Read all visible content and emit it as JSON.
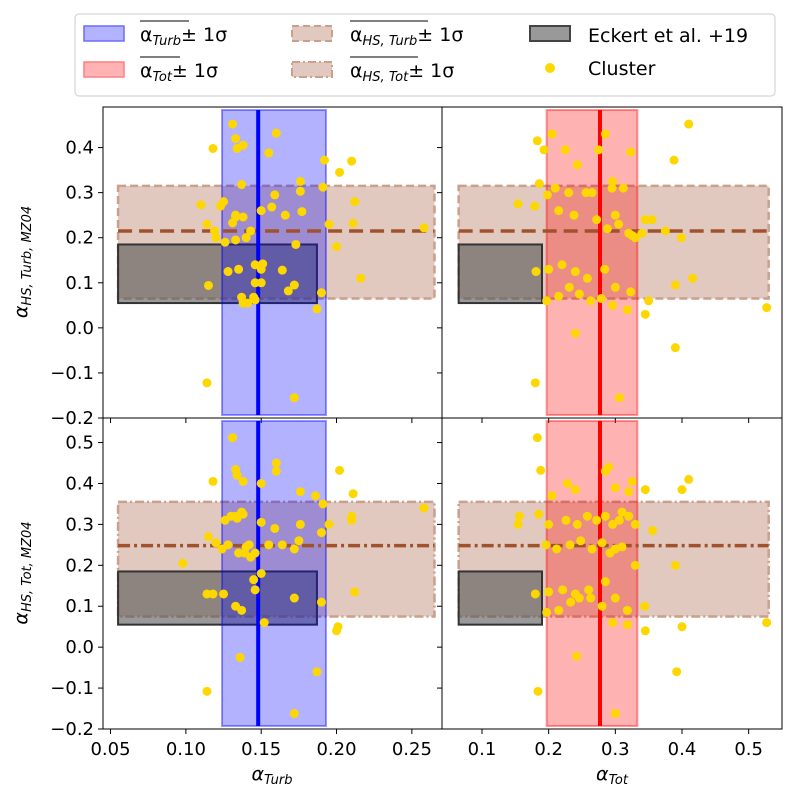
{
  "chart_data": {
    "type": "scatter",
    "figure": "2x2 grid of scatter panels with shared axes",
    "colors": {
      "turb": "#0000ff",
      "turb_fill": "#b3b3ff",
      "tot": "#ff0000",
      "tot_fill": "#ffb3b3",
      "hs": "#a0522d",
      "hs_fill": "#e2c9bf",
      "eckert": "#555555",
      "cluster": "#ffd700"
    },
    "legend": {
      "placement": "top",
      "entries": [
        {
          "key": "turb_band",
          "label": "α_Turb ± 1σ",
          "pm": "± 1σ"
        },
        {
          "key": "tot_band",
          "label": "α_Tot ± 1σ",
          "pm": "± 1σ"
        },
        {
          "key": "hs_turb_band",
          "label": "α_HS,Turb ± 1σ",
          "pm": "± 1σ"
        },
        {
          "key": "hs_tot_band",
          "label": "α_HS,Tot ± 1σ",
          "pm": "± 1σ"
        },
        {
          "key": "eckert",
          "label": "Eckert et al. +19"
        },
        {
          "key": "cluster",
          "label": "Cluster"
        }
      ]
    },
    "x_axes": [
      {
        "label": "α_Turb",
        "range": [
          0.045,
          0.27
        ],
        "ticks": [
          0.05,
          0.1,
          0.15,
          0.2,
          0.25
        ],
        "tick_labels": [
          "0.05",
          "0.10",
          "0.15",
          "0.20",
          "0.25"
        ]
      },
      {
        "label": "α_Tot",
        "range": [
          0.04,
          0.55
        ],
        "ticks": [
          0.1,
          0.2,
          0.3,
          0.4,
          0.5
        ],
        "tick_labels": [
          "0.1",
          "0.2",
          "0.3",
          "0.4",
          "0.5"
        ]
      }
    ],
    "y_axes": [
      {
        "label": "α_HS,Turb,MZ04",
        "range": [
          -0.2,
          0.49
        ],
        "ticks": [
          -0.2,
          -0.1,
          0.0,
          0.1,
          0.2,
          0.3,
          0.4
        ],
        "tick_labels": [
          "−0.2",
          "−0.1",
          "0.0",
          "0.1",
          "0.2",
          "0.3",
          "0.4"
        ]
      },
      {
        "label": "α_HS,Tot,MZ04",
        "range": [
          -0.2,
          0.56
        ],
        "ticks": [
          -0.2,
          -0.1,
          0.0,
          0.1,
          0.2,
          0.3,
          0.4,
          0.5
        ],
        "tick_labels": [
          "−0.2",
          "−0.1",
          "0.0",
          "0.1",
          "0.2",
          "0.3",
          "0.4",
          "0.5"
        ]
      }
    ],
    "panels": [
      {
        "id": "top-left",
        "row": 0,
        "col": 0,
        "vband": {
          "mean": 0.148,
          "low": 0.124,
          "high": 0.193,
          "kind": "turb"
        },
        "hband": {
          "mean": 0.215,
          "low": 0.065,
          "high": 0.315,
          "x_from": 0.055,
          "x_to": 0.265,
          "kind": "hs_turb"
        },
        "eckert": {
          "x0": 0.055,
          "x1": 0.187,
          "y0": 0.055,
          "y1": 0.185
        },
        "cluster": {
          "x": [
            0.131,
            0.118,
            0.133,
            0.134,
            0.138,
            0.16,
            0.155,
            0.192,
            0.21,
            0.176,
            0.191,
            0.202,
            0.137,
            0.159,
            0.176,
            0.212,
            0.11,
            0.125,
            0.123,
            0.133,
            0.133,
            0.131,
            0.138,
            0.15,
            0.166,
            0.157,
            0.177,
            0.195,
            0.211,
            0.143,
            0.114,
            0.119,
            0.12,
            0.126,
            0.133,
            0.14,
            0.151,
            0.146,
            0.15,
            0.164,
            0.173,
            0.2,
            0.216,
            0.258,
            0.146,
            0.145,
            0.168,
            0.172,
            0.115,
            0.19,
            0.128,
            0.135,
            0.137,
            0.138,
            0.141,
            0.146,
            0.15,
            0.187,
            0.114,
            0.172
          ],
          "y": [
            0.452,
            0.398,
            0.42,
            0.398,
            0.405,
            0.432,
            0.388,
            0.372,
            0.37,
            0.325,
            0.312,
            0.345,
            0.318,
            0.295,
            0.303,
            0.28,
            0.273,
            0.28,
            0.27,
            0.25,
            0.246,
            0.233,
            0.246,
            0.26,
            0.25,
            0.268,
            0.258,
            0.23,
            0.232,
            0.215,
            0.23,
            0.215,
            0.2,
            0.19,
            0.195,
            0.2,
            0.142,
            0.14,
            0.13,
            0.128,
            0.185,
            0.18,
            0.11,
            0.222,
            0.062,
            0.068,
            0.082,
            0.095,
            0.094,
            0.078,
            0.125,
            0.13,
            0.068,
            0.055,
            0.055,
            0.1,
            0.1,
            0.042,
            -0.122,
            -0.155
          ]
        }
      },
      {
        "id": "top-right",
        "row": 0,
        "col": 1,
        "vband": {
          "mean": 0.277,
          "low": 0.197,
          "high": 0.333,
          "kind": "tot"
        },
        "hband": {
          "mean": 0.215,
          "low": 0.065,
          "high": 0.315,
          "x_from": 0.065,
          "x_to": 0.53,
          "kind": "hs_turb"
        },
        "eckert": {
          "x0": 0.065,
          "x1": 0.19,
          "y0": 0.055,
          "y1": 0.185
        },
        "cluster": {
          "x": [
            0.183,
            0.193,
            0.205,
            0.225,
            0.243,
            0.275,
            0.285,
            0.296,
            0.312,
            0.323,
            0.388,
            0.41,
            0.186,
            0.21,
            0.23,
            0.265,
            0.295,
            0.305,
            0.32,
            0.34,
            0.345,
            0.355,
            0.375,
            0.154,
            0.179,
            0.198,
            0.215,
            0.238,
            0.256,
            0.272,
            0.288,
            0.3,
            0.325,
            0.33,
            0.399,
            0.181,
            0.2,
            0.22,
            0.24,
            0.258,
            0.284,
            0.3,
            0.323,
            0.35,
            0.39,
            0.416,
            0.527,
            0.197,
            0.215,
            0.231,
            0.246,
            0.263,
            0.279,
            0.296,
            0.318,
            0.345,
            0.18,
            0.306,
            0.39,
            0.24
          ],
          "y": [
            0.415,
            0.395,
            0.43,
            0.395,
            0.362,
            0.395,
            0.43,
            0.325,
            0.31,
            0.39,
            0.372,
            0.452,
            0.32,
            0.31,
            0.3,
            0.3,
            0.31,
            0.23,
            0.21,
            0.21,
            0.24,
            0.24,
            0.215,
            0.275,
            0.27,
            0.295,
            0.26,
            0.25,
            0.3,
            0.24,
            0.22,
            0.25,
            0.205,
            0.2,
            0.2,
            0.125,
            0.13,
            0.14,
            0.125,
            0.11,
            0.13,
            0.09,
            0.08,
            0.06,
            0.095,
            0.11,
            0.045,
            0.06,
            0.07,
            0.09,
            0.075,
            0.06,
            0.065,
            0.05,
            0.04,
            0.03,
            -0.122,
            -0.155,
            -0.044,
            -0.012
          ]
        }
      },
      {
        "id": "bottom-left",
        "row": 1,
        "col": 0,
        "vband": {
          "mean": 0.148,
          "low": 0.124,
          "high": 0.193,
          "kind": "turb"
        },
        "hband": {
          "mean": 0.248,
          "low": 0.075,
          "high": 0.355,
          "x_from": 0.055,
          "x_to": 0.265,
          "kind": "hs_tot"
        },
        "eckert": {
          "x0": 0.055,
          "x1": 0.187,
          "y0": 0.055,
          "y1": 0.185
        },
        "cluster": {
          "x": [
            0.131,
            0.133,
            0.134,
            0.138,
            0.16,
            0.16,
            0.118,
            0.15,
            0.176,
            0.191,
            0.202,
            0.137,
            0.176,
            0.21,
            0.21,
            0.133,
            0.126,
            0.13,
            0.134,
            0.138,
            0.15,
            0.159,
            0.195,
            0.175,
            0.211,
            0.128,
            0.14,
            0.142,
            0.146,
            0.155,
            0.164,
            0.172,
            0.19,
            0.258,
            0.098,
            0.115,
            0.12,
            0.124,
            0.135,
            0.139,
            0.143,
            0.145,
            0.15,
            0.186,
            0.212,
            0.114,
            0.118,
            0.125,
            0.133,
            0.137,
            0.146,
            0.152,
            0.172,
            0.19,
            0.2,
            0.201,
            0.136,
            0.187,
            0.114,
            0.172
          ],
          "y": [
            0.512,
            0.434,
            0.42,
            0.405,
            0.45,
            0.43,
            0.405,
            0.4,
            0.38,
            0.35,
            0.432,
            0.33,
            0.3,
            0.32,
            0.31,
            0.32,
            0.31,
            0.32,
            0.315,
            0.325,
            0.305,
            0.29,
            0.3,
            0.26,
            0.375,
            0.25,
            0.245,
            0.25,
            0.23,
            0.25,
            0.25,
            0.24,
            0.28,
            0.34,
            0.205,
            0.27,
            0.255,
            0.24,
            0.23,
            0.23,
            0.22,
            0.165,
            0.18,
            0.37,
            0.135,
            0.13,
            0.13,
            0.13,
            0.1,
            0.09,
            0.14,
            0.06,
            0.12,
            0.11,
            0.04,
            0.05,
            -0.025,
            -0.06,
            -0.108,
            -0.162
          ]
        }
      },
      {
        "id": "bottom-right",
        "row": 1,
        "col": 1,
        "vband": {
          "mean": 0.277,
          "low": 0.197,
          "high": 0.333,
          "kind": "tot"
        },
        "hband": {
          "mean": 0.248,
          "low": 0.075,
          "high": 0.355,
          "x_from": 0.065,
          "x_to": 0.53,
          "kind": "hs_tot"
        },
        "eckert": {
          "x0": 0.065,
          "x1": 0.19,
          "y0": 0.055,
          "y1": 0.185
        },
        "cluster": {
          "x": [
            0.183,
            0.188,
            0.285,
            0.29,
            0.325,
            0.41,
            0.4,
            0.228,
            0.24,
            0.205,
            0.3,
            0.31,
            0.32,
            0.345,
            0.156,
            0.185,
            0.2,
            0.226,
            0.243,
            0.258,
            0.272,
            0.285,
            0.296,
            0.306,
            0.32,
            0.33,
            0.356,
            0.154,
            0.196,
            0.212,
            0.232,
            0.248,
            0.265,
            0.28,
            0.292,
            0.3,
            0.31,
            0.33,
            0.39,
            0.18,
            0.2,
            0.221,
            0.24,
            0.26,
            0.285,
            0.3,
            0.318,
            0.344,
            0.4,
            0.527,
            0.197,
            0.215,
            0.233,
            0.246,
            0.263,
            0.28,
            0.296,
            0.318,
            0.345,
            0.184,
            0.3,
            0.392,
            0.242
          ],
          "y": [
            0.512,
            0.432,
            0.43,
            0.44,
            0.405,
            0.41,
            0.385,
            0.4,
            0.385,
            0.37,
            0.39,
            0.33,
            0.38,
            0.385,
            0.32,
            0.325,
            0.3,
            0.31,
            0.3,
            0.32,
            0.31,
            0.32,
            0.3,
            0.31,
            0.32,
            0.3,
            0.285,
            0.3,
            0.25,
            0.24,
            0.25,
            0.26,
            0.24,
            0.255,
            0.23,
            0.24,
            0.245,
            0.2,
            0.2,
            0.13,
            0.135,
            0.14,
            0.13,
            0.14,
            0.16,
            0.12,
            0.09,
            0.1,
            0.05,
            0.06,
            0.085,
            0.09,
            0.11,
            0.12,
            0.12,
            0.1,
            0.06,
            0.055,
            0.04,
            -0.108,
            -0.162,
            -0.06,
            -0.022
          ]
        }
      }
    ]
  }
}
